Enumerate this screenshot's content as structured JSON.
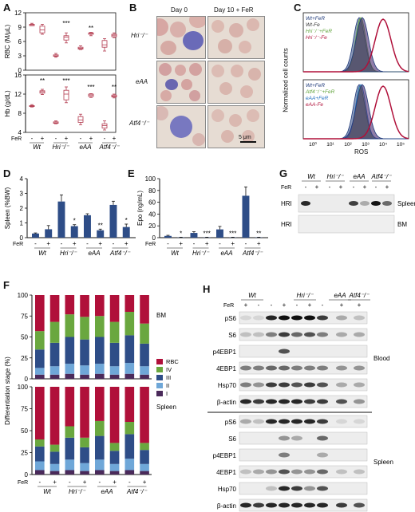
{
  "panels": {
    "A": {
      "label": "A",
      "top_ylabel": "RBC (M/μL)",
      "bottom_ylabel": "Hb (g/dL)",
      "top_ticks": [
        "12",
        "9",
        "6",
        "3",
        "0"
      ],
      "bottom_ticks": [
        "16",
        "12",
        "8",
        "4"
      ],
      "fer_label": "FeR",
      "fer_signs": [
        "-",
        "+",
        "-",
        "+",
        "-",
        "+",
        "-",
        "+"
      ],
      "groups": [
        "Wt",
        "Hri⁻/⁻",
        "eAA",
        "Atf4⁻/⁻"
      ],
      "top_sig": [
        "***",
        "**"
      ],
      "bottom_sig": [
        "**",
        "***",
        "***",
        "**"
      ],
      "rbc": [
        {
          "min": 9.3,
          "q1": 9.3,
          "med": 9.5,
          "q3": 9.6,
          "max": 9.8
        },
        {
          "min": 7.5,
          "q1": 7.8,
          "med": 8.4,
          "q3": 9.2,
          "max": 9.6
        },
        {
          "min": 2.7,
          "q1": 2.9,
          "med": 3.0,
          "q3": 3.2,
          "max": 3.5
        },
        {
          "min": 5.7,
          "q1": 6.3,
          "med": 6.9,
          "q3": 7.2,
          "max": 7.8
        },
        {
          "min": 4.3,
          "q1": 4.4,
          "med": 4.6,
          "q3": 4.8,
          "max": 5.1
        },
        {
          "min": 7.2,
          "q1": 7.5,
          "med": 7.7,
          "q3": 7.8,
          "max": 7.9
        },
        {
          "min": 4.0,
          "q1": 4.8,
          "med": 5.3,
          "q3": 6.2,
          "max": 6.6
        },
        {
          "min": 6.8,
          "q1": 7.0,
          "med": 7.3,
          "q3": 7.5,
          "max": 7.8
        }
      ],
      "hb": [
        {
          "min": 9.3,
          "q1": 9.4,
          "med": 9.5,
          "q3": 9.6,
          "max": 9.8
        },
        {
          "min": 11.9,
          "q1": 12.2,
          "med": 12.5,
          "q3": 12.7,
          "max": 13.0
        },
        {
          "min": 5.8,
          "q1": 5.9,
          "med": 6.0,
          "q3": 6.2,
          "max": 6.4
        },
        {
          "min": 10.2,
          "q1": 10.8,
          "med": 12.0,
          "q3": 12.8,
          "max": 13.5
        },
        {
          "min": 5.6,
          "q1": 6.1,
          "med": 6.6,
          "q3": 7.3,
          "max": 7.8
        },
        {
          "min": 11.3,
          "q1": 11.5,
          "med": 11.8,
          "q3": 12.0,
          "max": 12.1
        },
        {
          "min": 4.5,
          "q1": 4.9,
          "med": 5.4,
          "q3": 5.8,
          "max": 6.4
        },
        {
          "min": 11.2,
          "q1": 11.4,
          "med": 11.6,
          "q3": 11.8,
          "max": 12.0
        }
      ]
    },
    "B": {
      "label": "B",
      "col1": "Day 0",
      "col2": "Day 10 + FeR",
      "rows": [
        "Hri⁻/⁻",
        "eAA",
        "Atf4⁻/⁻"
      ],
      "scale": "5 μm"
    },
    "C": {
      "label": "C",
      "ylabel": "Normalized cell counts",
      "xlabel": "ROS",
      "xticks": [
        "10⁰",
        "10¹",
        "10²",
        "10³",
        "10⁴",
        "10⁵"
      ],
      "top_legend": [
        {
          "text": "Wt+FeR",
          "color": "#1f3a7a"
        },
        {
          "text": "Wt-Fe",
          "color": "#333333"
        },
        {
          "text": "Hri⁻/⁻+FeR",
          "color": "#5fa33a"
        },
        {
          "text": "Hri⁻/⁻-Fe",
          "color": "#b0103a"
        }
      ],
      "bottom_legend": [
        {
          "text": "Wt+FeR",
          "color": "#1f3a7a"
        },
        {
          "text": "Atf4⁻/⁻+FeR",
          "color": "#5fa33a"
        },
        {
          "text": "eAA+FeR",
          "color": "#1f6fc0"
        },
        {
          "text": "eAA-Fe",
          "color": "#b0103a"
        }
      ]
    },
    "D": {
      "label": "D",
      "ylabel": "Spleen (%BW)",
      "yticks": [
        "4",
        "3",
        "2",
        "1",
        "0"
      ],
      "fer_label": "FeR",
      "fer_signs": [
        "-",
        "+",
        "-",
        "+",
        "-",
        "+",
        "-",
        "+"
      ],
      "groups": [
        "Wt",
        "Hri⁻/⁻",
        "eAA",
        "Atf4⁻/⁻"
      ],
      "sig": [
        "",
        "",
        "",
        "*",
        "",
        "**",
        "",
        "*"
      ],
      "chart_data": {
        "type": "bar",
        "categories": [
          "Wt -",
          "Wt +",
          "Hri -",
          "Hri +",
          "eAA -",
          "eAA +",
          "Atf4 -",
          "Atf4 +"
        ],
        "values": [
          0.28,
          0.57,
          2.45,
          0.78,
          1.52,
          0.5,
          2.22,
          0.72
        ],
        "errors": [
          0.04,
          0.25,
          0.45,
          0.1,
          0.1,
          0.08,
          0.25,
          0.2
        ],
        "ylabel": "Spleen (%BW)",
        "ylim": [
          0,
          4
        ]
      }
    },
    "E": {
      "label": "E",
      "ylabel": "Epo (ng/mL)",
      "yticks": [
        "100",
        "80",
        "60",
        "40",
        "20",
        "0"
      ],
      "fer_label": "FeR",
      "fer_signs": [
        "-",
        "+",
        "-",
        "+",
        "-",
        "+",
        "-",
        "+"
      ],
      "groups": [
        "Wt",
        "Hri⁻/⁻",
        "eAA",
        "Atf4⁻/⁻"
      ],
      "sig": [
        "",
        "*",
        "",
        "***",
        "",
        "***",
        "",
        "**"
      ],
      "chart_data": {
        "type": "bar",
        "categories": [
          "Wt -",
          "Wt +",
          "Hri -",
          "Hri +",
          "eAA -",
          "eAA +",
          "Atf4 -",
          "Atf4 +"
        ],
        "values": [
          3,
          0.5,
          8,
          0.5,
          14,
          0.5,
          71,
          0.5
        ],
        "errors": [
          1,
          0.3,
          2,
          0.3,
          5,
          0.3,
          15,
          0.3
        ],
        "ylabel": "Epo (ng/mL)",
        "ylim": [
          0,
          100
        ]
      }
    },
    "F": {
      "label": "F",
      "ylabel": "Differentiation stage (%)",
      "yticks": [
        "100",
        "75",
        "50",
        "25",
        "0"
      ],
      "fer_label": "FeR",
      "fer_signs": [
        "-",
        "+",
        "-",
        "+",
        "-",
        "+",
        "-",
        "+"
      ],
      "groups": [
        "Wt",
        "Hri⁻/⁻",
        "eAA",
        "Atf4⁻/⁻"
      ],
      "legend": [
        {
          "text": "RBC",
          "color": "#b0103a"
        },
        {
          "text": "IV",
          "color": "#6aa73f"
        },
        {
          "text": "III",
          "color": "#2e4d87"
        },
        {
          "text": "II",
          "color": "#6fa7d8"
        },
        {
          "text": "I",
          "color": "#4a2a5a"
        }
      ],
      "tissue_top": "BM",
      "tissue_bottom": "Spleen",
      "bm": [
        [
          5,
          8,
          22,
          22,
          43
        ],
        [
          5,
          10,
          28,
          25,
          32
        ],
        [
          6,
          12,
          32,
          27,
          23
        ],
        [
          5,
          11,
          31,
          27,
          26
        ],
        [
          6,
          12,
          32,
          25,
          25
        ],
        [
          5,
          10,
          28,
          25,
          32
        ],
        [
          6,
          13,
          33,
          28,
          20
        ],
        [
          5,
          10,
          27,
          24,
          34
        ]
      ],
      "spleen": [
        [
          5,
          10,
          17,
          8,
          60
        ],
        [
          4,
          8,
          14,
          8,
          66
        ],
        [
          5,
          12,
          25,
          13,
          45
        ],
        [
          4,
          9,
          18,
          11,
          58
        ],
        [
          5,
          12,
          27,
          17,
          39
        ],
        [
          4,
          8,
          15,
          9,
          64
        ],
        [
          5,
          13,
          28,
          14,
          40
        ],
        [
          4,
          8,
          16,
          8,
          64
        ]
      ]
    },
    "G": {
      "label": "G",
      "groups": [
        "Wt",
        "Hri⁻/⁻",
        "eAA",
        "Atf4⁻/⁻"
      ],
      "fer_label": "FeR",
      "fer_signs": [
        "-",
        "+",
        "-",
        "+",
        "-",
        "+",
        "-",
        "+"
      ],
      "rows": [
        "HRI",
        "HRI"
      ],
      "tissues": [
        "Spleen",
        "BM"
      ]
    },
    "H": {
      "label": "H",
      "groups": [
        "Wt",
        "Hri⁻/⁻",
        "eAA",
        "Atf4⁻/⁻"
      ],
      "fer_label": "FeR",
      "fer_signs": [
        "+",
        "-",
        "-",
        "+",
        "-",
        "+",
        "-",
        "+",
        "+"
      ],
      "blood_rows": [
        "pS6",
        "S6",
        "p4EBP1",
        "4EBP1",
        "Hsp70",
        "β-actin"
      ],
      "spleen_rows": [
        "pS6",
        "S6",
        "p4EBP1",
        "4EBP1",
        "Hsp70",
        "β-actin"
      ],
      "tissues": [
        "Blood",
        "Spleen"
      ]
    }
  }
}
